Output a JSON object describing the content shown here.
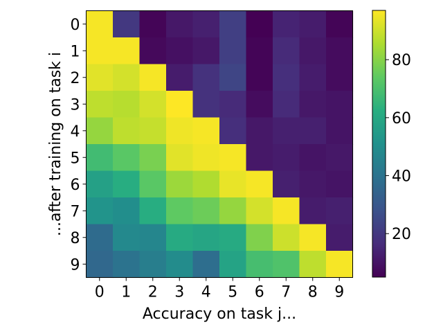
{
  "chart_data": {
    "type": "heatmap",
    "title": "",
    "xlabel": "Accuracy on task j...",
    "ylabel": "...after training on task i",
    "x_ticks": [
      "0",
      "1",
      "2",
      "3",
      "4",
      "5",
      "6",
      "7",
      "8",
      "9"
    ],
    "y_ticks": [
      "0",
      "1",
      "2",
      "3",
      "4",
      "5",
      "6",
      "7",
      "8",
      "9"
    ],
    "colormap": "viridis",
    "vmin": 5,
    "vmax": 97,
    "colorbar_ticks": [
      20,
      40,
      60,
      80
    ],
    "values": [
      [
        96,
        20,
        6,
        11,
        13,
        22,
        5,
        14,
        12,
        6
      ],
      [
        96,
        96,
        7,
        9,
        11,
        22,
        6,
        16,
        11,
        8
      ],
      [
        93,
        91,
        96,
        12,
        18,
        24,
        6,
        17,
        12,
        8
      ],
      [
        88,
        87,
        91,
        97,
        18,
        16,
        8,
        16,
        11,
        10
      ],
      [
        82,
        88,
        89,
        95,
        96,
        17,
        11,
        13,
        13,
        10
      ],
      [
        68,
        73,
        78,
        93,
        95,
        96,
        11,
        12,
        10,
        11
      ],
      [
        57,
        62,
        73,
        83,
        86,
        94,
        96,
        13,
        11,
        10
      ],
      [
        52,
        50,
        62,
        74,
        76,
        82,
        91,
        96,
        12,
        13
      ],
      [
        37,
        48,
        47,
        61,
        59,
        61,
        79,
        90,
        96,
        12
      ],
      [
        36,
        40,
        44,
        49,
        38,
        58,
        69,
        71,
        88,
        96
      ]
    ]
  }
}
